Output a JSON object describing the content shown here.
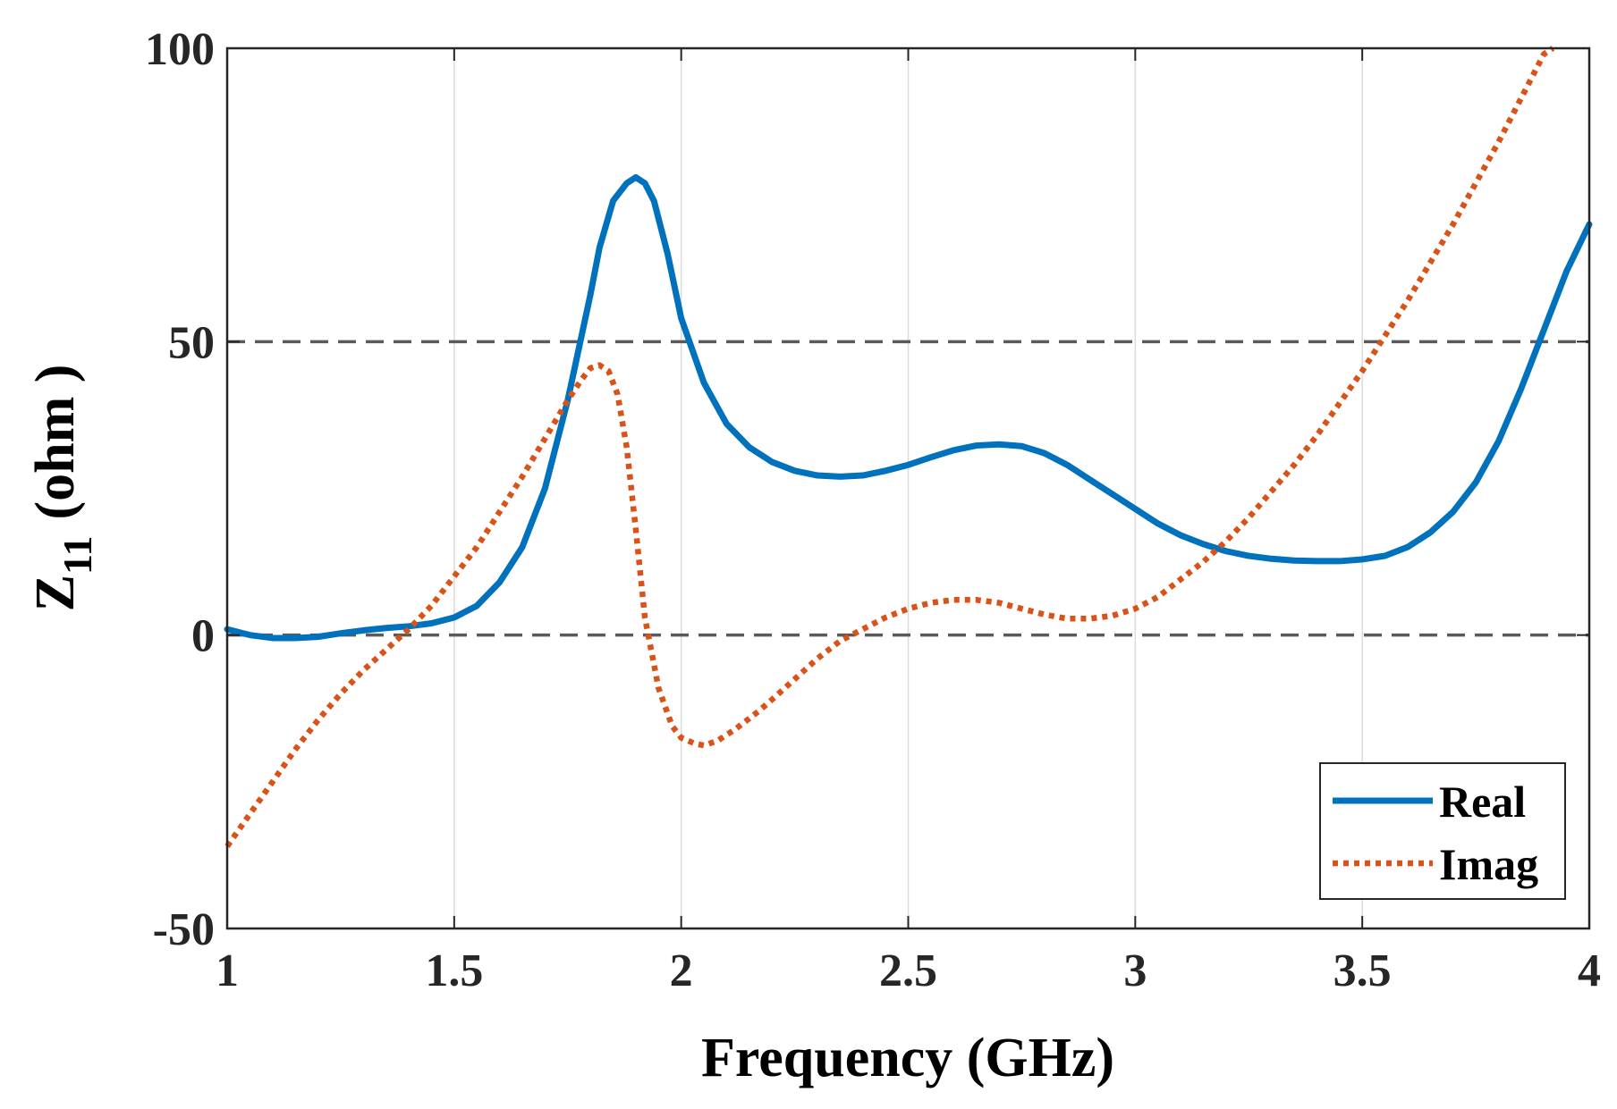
{
  "chart_data": {
    "type": "line",
    "title": "",
    "xlabel": "Frequency (GHz)",
    "ylabel_main": "Z",
    "ylabel_sub": "11",
    "ylabel_unit": "(ohm )",
    "xlim": [
      1,
      4
    ],
    "ylim": [
      -50,
      100
    ],
    "xticks": [
      1,
      1.5,
      2,
      2.5,
      3,
      3.5,
      4
    ],
    "xtick_labels": [
      "1",
      "1.5",
      "2",
      "2.5",
      "3",
      "3.5",
      "4"
    ],
    "yticks": [
      -50,
      0,
      50,
      100
    ],
    "ytick_labels": [
      "-50",
      "0",
      "50",
      "100"
    ],
    "grid": "vertical",
    "reference_lines": [
      0,
      50
    ],
    "legend_position": "bottom-right",
    "series": [
      {
        "name": "Real",
        "color": "#0072BD",
        "style": "solid",
        "x": [
          1.0,
          1.05,
          1.1,
          1.15,
          1.2,
          1.25,
          1.3,
          1.35,
          1.4,
          1.45,
          1.5,
          1.55,
          1.6,
          1.65,
          1.7,
          1.75,
          1.8,
          1.82,
          1.85,
          1.88,
          1.9,
          1.92,
          1.94,
          1.97,
          2.0,
          2.05,
          2.1,
          2.15,
          2.2,
          2.25,
          2.3,
          2.35,
          2.4,
          2.45,
          2.5,
          2.55,
          2.6,
          2.65,
          2.7,
          2.75,
          2.8,
          2.85,
          2.9,
          2.95,
          3.0,
          3.05,
          3.1,
          3.15,
          3.2,
          3.25,
          3.3,
          3.35,
          3.4,
          3.45,
          3.5,
          3.55,
          3.6,
          3.65,
          3.7,
          3.75,
          3.8,
          3.85,
          3.9,
          3.95,
          4.0
        ],
        "values": [
          1.0,
          0.0,
          -0.5,
          -0.5,
          -0.3,
          0.3,
          0.8,
          1.2,
          1.5,
          2.0,
          3.0,
          5.0,
          9.0,
          15.0,
          25.0,
          40.0,
          58.0,
          66.0,
          74.0,
          77.0,
          78.0,
          77.0,
          74.0,
          65.0,
          54.0,
          43.0,
          36.0,
          32.0,
          29.5,
          28.0,
          27.2,
          27.0,
          27.2,
          28.0,
          29.0,
          30.3,
          31.5,
          32.3,
          32.5,
          32.2,
          31.0,
          29.0,
          26.5,
          24.0,
          21.5,
          19.0,
          17.0,
          15.5,
          14.3,
          13.5,
          13.0,
          12.7,
          12.6,
          12.6,
          12.9,
          13.5,
          15.0,
          17.5,
          21.0,
          26.0,
          33.0,
          42.0,
          52.0,
          62.0,
          70.0
        ]
      },
      {
        "name": "Imag",
        "color": "#D95319",
        "style": "dotted",
        "x": [
          1.0,
          1.05,
          1.1,
          1.15,
          1.2,
          1.25,
          1.3,
          1.35,
          1.4,
          1.45,
          1.5,
          1.55,
          1.6,
          1.65,
          1.7,
          1.75,
          1.78,
          1.8,
          1.82,
          1.84,
          1.86,
          1.88,
          1.9,
          1.92,
          1.95,
          1.98,
          2.0,
          2.03,
          2.05,
          2.08,
          2.12,
          2.17,
          2.2,
          2.25,
          2.3,
          2.35,
          2.4,
          2.45,
          2.5,
          2.55,
          2.6,
          2.65,
          2.7,
          2.75,
          2.8,
          2.85,
          2.9,
          2.95,
          3.0,
          3.05,
          3.1,
          3.15,
          3.2,
          3.25,
          3.3,
          3.35,
          3.4,
          3.45,
          3.5,
          3.55,
          3.6,
          3.65,
          3.7,
          3.75,
          3.8,
          3.85,
          3.9,
          3.92
        ],
        "values": [
          -36.0,
          -30.5,
          -25.0,
          -19.5,
          -14.5,
          -10.0,
          -6.0,
          -2.5,
          1.0,
          5.0,
          10.0,
          15.0,
          21.0,
          27.0,
          33.5,
          40.0,
          43.5,
          45.5,
          46.0,
          45.0,
          41.0,
          32.0,
          18.0,
          3.0,
          -9.0,
          -15.5,
          -17.5,
          -18.5,
          -18.8,
          -18.0,
          -16.0,
          -13.0,
          -11.0,
          -7.5,
          -4.0,
          -1.0,
          1.0,
          3.0,
          4.5,
          5.5,
          6.0,
          6.0,
          5.5,
          4.5,
          3.5,
          2.8,
          2.8,
          3.3,
          4.5,
          6.5,
          9.5,
          12.5,
          16.0,
          20.0,
          24.5,
          29.0,
          34.0,
          39.5,
          45.0,
          51.0,
          57.0,
          63.5,
          70.0,
          77.0,
          84.0,
          91.5,
          99.0,
          100.0
        ]
      }
    ]
  }
}
